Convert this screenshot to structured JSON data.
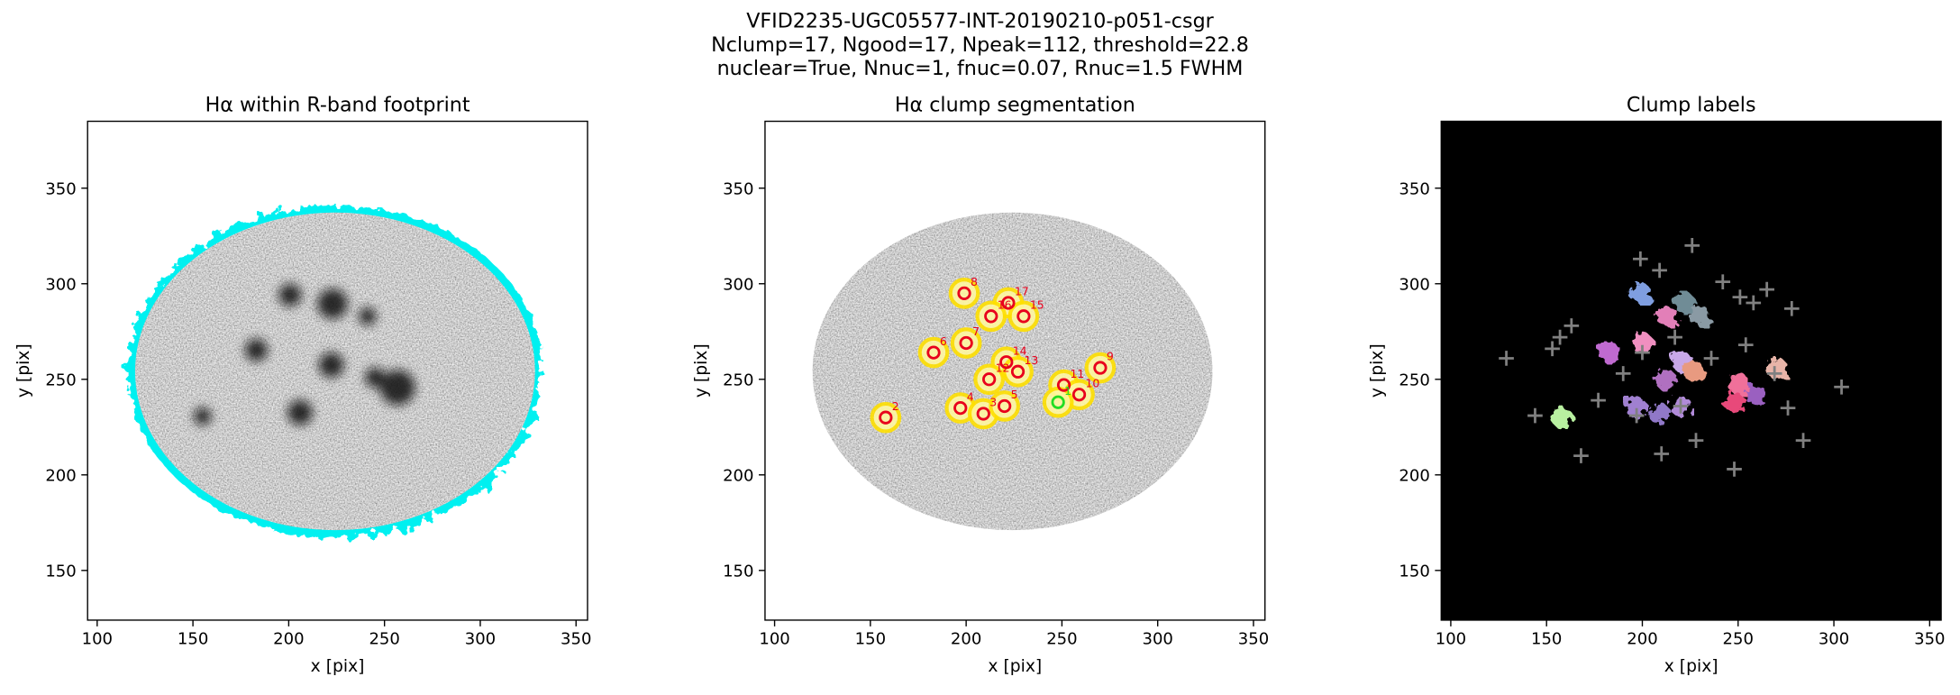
{
  "figure_title": [
    "VFID2235-UGC05577-INT-20190210-p051-csgr",
    "Nclump=17, Ngood=17, Npeak=112, threshold=22.8",
    "nuclear=True, Nnuc=1, fnuc=0.07, Rnuc=1.5 FWHM"
  ],
  "chart_data": [
    {
      "type": "image",
      "title": "Hα within R-band footprint",
      "xlabel": "x [pix]",
      "ylabel": "y [pix]",
      "xlim": [
        95,
        356
      ],
      "ylim": [
        124,
        385
      ],
      "xticks": [
        100,
        150,
        200,
        250,
        300,
        350
      ],
      "yticks": [
        150,
        200,
        250,
        300,
        350
      ]
    },
    {
      "type": "image",
      "title": "Hα clump segmentation",
      "xlabel": "x [pix]",
      "ylabel": "y [pix]",
      "xlim": [
        95,
        356
      ],
      "ylim": [
        124,
        385
      ],
      "xticks": [
        100,
        150,
        200,
        250,
        300,
        350
      ],
      "yticks": [
        150,
        200,
        250,
        300,
        350
      ],
      "clumps": {
        "x": [
          199,
          222,
          213,
          230,
          200,
          183,
          221,
          212,
          227,
          251,
          259,
          270,
          197,
          209,
          220,
          158,
          248
        ],
        "y": [
          295,
          290,
          283,
          283,
          269,
          264,
          259,
          250,
          254,
          247,
          242,
          256,
          235,
          232,
          236,
          230,
          238
        ],
        "ids": [
          "8",
          "17",
          "16",
          "15",
          "7",
          "6",
          "14",
          "12",
          "13",
          "11",
          "10",
          "9",
          "4",
          "3",
          "5",
          "2",
          "1"
        ],
        "colors": [
          "#e8001c",
          "#e8001c",
          "#e8001c",
          "#e8001c",
          "#e8001c",
          "#e8001c",
          "#e8001c",
          "#e8001c",
          "#e8001c",
          "#e8001c",
          "#e8001c",
          "#e8001c",
          "#e8001c",
          "#e8001c",
          "#e8001c",
          "#e8001c",
          "#22dd22"
        ]
      }
    },
    {
      "type": "image",
      "title": "Clump labels",
      "xlabel": "x [pix]",
      "ylabel": "y [pix]",
      "xlim": [
        95,
        356
      ],
      "ylim": [
        124,
        385
      ],
      "xticks": [
        100,
        150,
        200,
        250,
        300,
        350
      ],
      "yticks": [
        150,
        200,
        250,
        300,
        350
      ],
      "clumps": {
        "x": [
          199,
          222,
          213,
          230,
          200,
          183,
          221,
          212,
          227,
          251,
          259,
          270,
          197,
          209,
          220,
          158,
          248
        ],
        "y": [
          295,
          290,
          283,
          283,
          269,
          264,
          259,
          250,
          254,
          247,
          242,
          256,
          235,
          232,
          236,
          230,
          238
        ],
        "colors": [
          "#7f9ee0",
          "#6f8c96",
          "#e27fb8",
          "#8a9aa4",
          "#f08fc0",
          "#c06ad0",
          "#c8a8e8",
          "#b070c0",
          "#e89a80",
          "#f0709a",
          "#9a60c0",
          "#e8b4a8",
          "#a080d0",
          "#9078c8",
          "#b08ad8",
          "#b8f0a0",
          "#e84a7a"
        ]
      },
      "peaks": {
        "color": "#808080",
        "x": [
          226,
          199,
          209,
          242,
          265,
          278,
          258,
          251,
          163,
          157,
          153,
          129,
          144,
          168,
          228,
          248,
          284,
          304,
          276,
          210,
          190,
          200,
          217,
          236,
          254,
          269,
          220,
          197,
          177
        ],
        "y": [
          320,
          313,
          307,
          301,
          297,
          287,
          290,
          293,
          278,
          272,
          266,
          261,
          231,
          210,
          218,
          203,
          218,
          246,
          235,
          211,
          253,
          264,
          272,
          261,
          268,
          253,
          236,
          231,
          239
        ]
      }
    }
  ]
}
